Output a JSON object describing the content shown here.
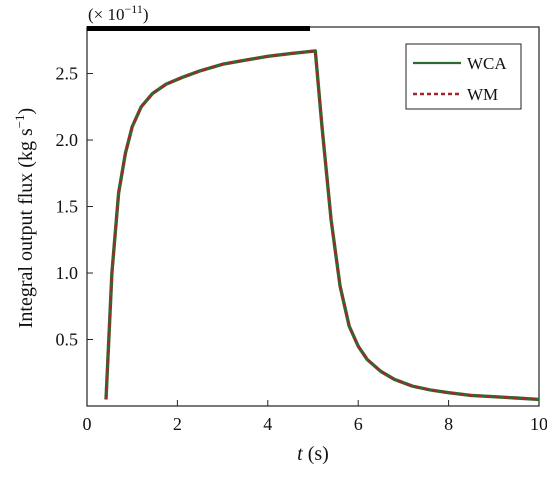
{
  "chart_data": {
    "type": "line",
    "title": "",
    "multiplier": "(× 10",
    "multiplier_exp": "−11",
    "multiplier_close": ")",
    "xlabel_var": "t",
    "xlabel_unit": " (s)",
    "ylabel_main": "Integral output flux (kg s",
    "ylabel_exp": "−1",
    "ylabel_close": ")",
    "xlim": [
      0,
      10
    ],
    "ylim": [
      0,
      2.85
    ],
    "xticks": [
      0,
      2,
      4,
      6,
      8,
      10
    ],
    "yticks": [
      0.5,
      1.0,
      1.5,
      2.0,
      2.5
    ],
    "xtick_labels": [
      "0",
      "2",
      "4",
      "6",
      "8",
      "10"
    ],
    "ytick_labels": [
      "0.5",
      "1.0",
      "1.5",
      "2.0",
      "2.5"
    ],
    "grid": false,
    "legend_position": "top-right",
    "legend": [
      {
        "name": "WCA",
        "style": "solid",
        "color": "#2e6b2e"
      },
      {
        "name": "WM",
        "style": "dashed",
        "color": "#a0282c"
      }
    ],
    "series": [
      {
        "name": "WCA",
        "x": [
          0.42,
          0.55,
          0.7,
          0.85,
          1.0,
          1.2,
          1.45,
          1.75,
          2.1,
          2.5,
          3.0,
          3.5,
          4.0,
          4.5,
          5.05,
          5.2,
          5.4,
          5.6,
          5.8,
          6.0,
          6.2,
          6.5,
          6.8,
          7.2,
          7.6,
          8.0,
          8.5,
          9.0,
          9.5,
          10.0
        ],
        "y": [
          0.05,
          1.0,
          1.6,
          1.9,
          2.1,
          2.25,
          2.35,
          2.42,
          2.47,
          2.52,
          2.57,
          2.6,
          2.63,
          2.65,
          2.67,
          2.1,
          1.4,
          0.9,
          0.6,
          0.45,
          0.35,
          0.26,
          0.2,
          0.15,
          0.12,
          0.1,
          0.08,
          0.07,
          0.06,
          0.05
        ]
      },
      {
        "name": "WM",
        "x": [
          0.42,
          0.55,
          0.7,
          0.85,
          1.0,
          1.2,
          1.45,
          1.75,
          2.1,
          2.5,
          3.0,
          3.5,
          4.0,
          4.5,
          5.05,
          5.2,
          5.4,
          5.6,
          5.8,
          6.0,
          6.2,
          6.5,
          6.8,
          7.2,
          7.6,
          8.0,
          8.5,
          9.0,
          9.5,
          10.0
        ],
        "y": [
          0.05,
          1.0,
          1.6,
          1.9,
          2.1,
          2.25,
          2.35,
          2.42,
          2.47,
          2.52,
          2.57,
          2.6,
          2.63,
          2.65,
          2.67,
          2.1,
          1.4,
          0.9,
          0.6,
          0.45,
          0.35,
          0.26,
          0.2,
          0.15,
          0.12,
          0.1,
          0.08,
          0.07,
          0.06,
          0.05
        ]
      }
    ]
  }
}
